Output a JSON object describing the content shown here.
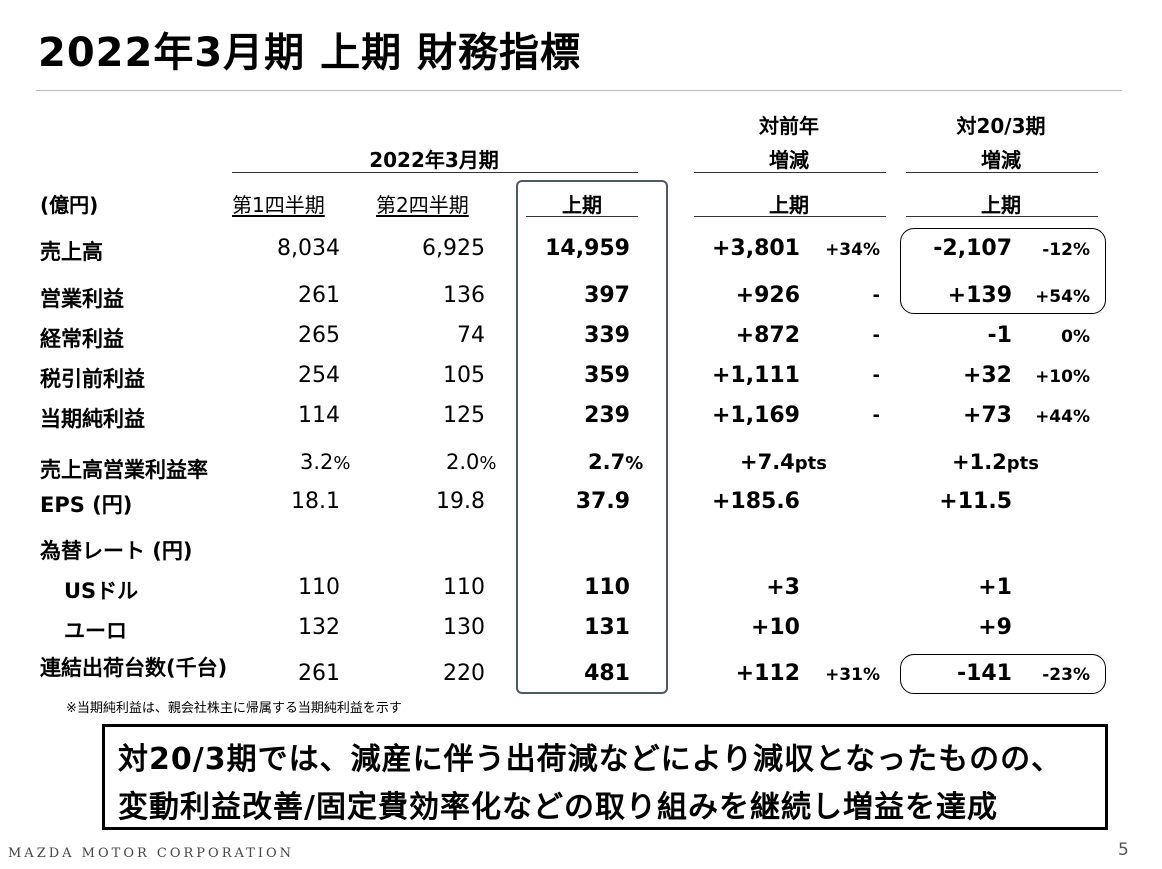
{
  "title": "2022年3月期 上期 財務指標",
  "header": {
    "period": "2022年3月期",
    "yoy_line1": "対前年",
    "yoy_line2": "増減",
    "vs20_line1": "対20/3期",
    "vs20_line2": "増減",
    "unit": "(億円)",
    "q1": "第1四半期",
    "q2": "第2四半期",
    "h1": "上期",
    "yoy_h1": "上期",
    "vs20_h1": "上期"
  },
  "rows": [
    {
      "label": "売上高",
      "q1": "8,034",
      "q2": "6,925",
      "h1": "14,959",
      "yoy": "+3,801",
      "yoy_pct": "+34%",
      "vs20": "-2,107",
      "vs20_pct": "-12%"
    },
    {
      "label": "営業利益",
      "q1": "261",
      "q2": "136",
      "h1": "397",
      "yoy": "+926",
      "yoy_pct": "-",
      "vs20": "+139",
      "vs20_pct": "+54%"
    },
    {
      "label": "経常利益",
      "q1": "265",
      "q2": "74",
      "h1": "339",
      "yoy": "+872",
      "yoy_pct": "-",
      "vs20": "-1",
      "vs20_pct": "0%"
    },
    {
      "label": "税引前利益",
      "q1": "254",
      "q2": "105",
      "h1": "359",
      "yoy": "+1,111",
      "yoy_pct": "-",
      "vs20": "+32",
      "vs20_pct": "+10%"
    },
    {
      "label": "当期純利益",
      "q1": "114",
      "q2": "125",
      "h1": "239",
      "yoy": "+1,169",
      "yoy_pct": "-",
      "vs20": "+73",
      "vs20_pct": "+44%"
    }
  ],
  "margin": {
    "label": "売上高営業利益率",
    "q1": "3.2",
    "q2": "2.0",
    "h1": "2.7",
    "pct_sign": "%",
    "yoy": "+7.4",
    "vs20": "+1.2",
    "pts": "pts"
  },
  "eps": {
    "label": "EPS (円)",
    "q1": "18.1",
    "q2": "19.8",
    "h1": "37.9",
    "yoy": "+185.6",
    "vs20": "+11.5"
  },
  "fx": {
    "label": "為替レート (円)",
    "usd": {
      "label": "USドル",
      "q1": "110",
      "q2": "110",
      "h1": "110",
      "yoy": "+3",
      "vs20": "+1"
    },
    "eur": {
      "label": "ユーロ",
      "q1": "132",
      "q2": "130",
      "h1": "131",
      "yoy": "+10",
      "vs20": "+9"
    }
  },
  "shipments": {
    "label": "連結出荷台数(千台)",
    "q1": "261",
    "q2": "220",
    "h1": "481",
    "yoy": "+112",
    "yoy_pct": "+31%",
    "vs20": "-141",
    "vs20_pct": "-23%"
  },
  "footnote": "※当期純利益は、親会社株主に帰属する当期純利益を示す",
  "message": {
    "line1": "対20/3期では、減産に伴う出荷減などにより減収となったものの、",
    "line2": "変動利益改善/固定費効率化などの取り組みを継続し増益を達成"
  },
  "footer": {
    "corporation": "MAZDA MOTOR CORPORATION",
    "page": "5"
  },
  "colors": {
    "highlight_box_border": "#4e5968",
    "text": "#000000"
  }
}
